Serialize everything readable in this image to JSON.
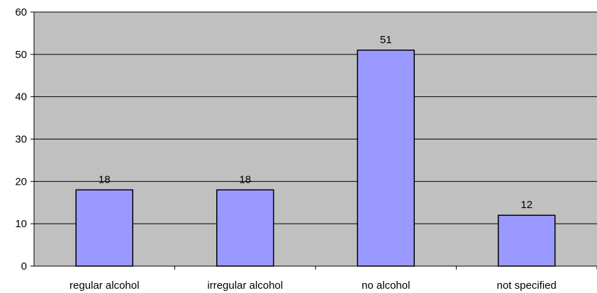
{
  "chart_data": {
    "type": "bar",
    "categories": [
      "regular alcohol",
      "irregular alcohol",
      "no alcohol",
      "not specified"
    ],
    "values": [
      18,
      18,
      51,
      12
    ],
    "data_labels": [
      "18",
      "18",
      "51",
      "12"
    ],
    "ylim": [
      0,
      60
    ],
    "yticks": [
      0,
      10,
      20,
      30,
      40,
      50,
      60
    ],
    "ytick_labels": [
      "0",
      "10",
      "20",
      "30",
      "40",
      "50",
      "60"
    ],
    "grid": true,
    "legend": "none",
    "colors": {
      "plot_background": "#c0c0c0",
      "bar_fill": "#9999ff",
      "bar_stroke": "#000000",
      "gridline": "#000000",
      "axis": "#000000"
    }
  }
}
